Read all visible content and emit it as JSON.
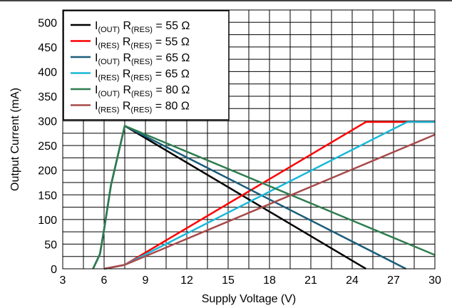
{
  "chart_data": {
    "type": "line",
    "title": "",
    "xlabel": "Supply Voltage (V)",
    "ylabel": "Output Current (mA)",
    "xlim": [
      3,
      30
    ],
    "ylim": [
      0,
      525
    ],
    "x_ticks": [
      3,
      6,
      9,
      12,
      15,
      18,
      21,
      24,
      27,
      30
    ],
    "x_tick_labels": [
      "3",
      "6",
      "9",
      "12",
      "15",
      "18",
      "21",
      "24",
      "27",
      "30"
    ],
    "y_ticks": [
      0,
      50,
      100,
      150,
      200,
      250,
      300,
      350,
      400,
      450,
      500
    ],
    "y_tick_labels": [
      "0",
      "50",
      "100",
      "150",
      "200",
      "250",
      "300",
      "350",
      "400",
      "450",
      "500"
    ],
    "grid": true,
    "legend_position": "top-left",
    "series": [
      {
        "name": "I(OUT) R(RES) = 55 Ω",
        "legend": {
          "main1": "I",
          "sub1": "(OUT)",
          "main2": " R",
          "sub2": "(RES)",
          "main3": " = 55 Ω"
        },
        "color": "#000000",
        "x": [
          5.2,
          5.7,
          6.0,
          6.5,
          7.5,
          25.0
        ],
        "y": [
          0,
          30,
          80,
          170,
          290,
          0
        ]
      },
      {
        "name": "I(RES) R(RES) = 55 Ω",
        "legend": {
          "main1": "I",
          "sub1": "(RES)",
          "main2": " R",
          "sub2": "(RES)",
          "main3": " = 55 Ω"
        },
        "color": "#ff0000",
        "x": [
          6.0,
          7.5,
          25.0,
          30.0
        ],
        "y": [
          0,
          8,
          298,
          298
        ]
      },
      {
        "name": "I(OUT) R(RES) = 65 Ω",
        "legend": {
          "main1": "I",
          "sub1": "(OUT)",
          "main2": " R",
          "sub2": "(RES)",
          "main3": " = 65 Ω"
        },
        "color": "#1b5e7a",
        "x": [
          5.2,
          5.7,
          6.0,
          6.5,
          7.5,
          27.9
        ],
        "y": [
          0,
          30,
          80,
          170,
          290,
          0
        ]
      },
      {
        "name": "I(RES) R(RES) = 65 Ω",
        "legend": {
          "main1": "I",
          "sub1": "(RES)",
          "main2": " R",
          "sub2": "(RES)",
          "main3": " = 65 Ω"
        },
        "color": "#1ab8d8",
        "x": [
          6.0,
          7.5,
          28.0,
          30.0
        ],
        "y": [
          0,
          8,
          298,
          298
        ]
      },
      {
        "name": "I(OUT) R(RES) = 80 Ω",
        "legend": {
          "main1": "I",
          "sub1": "(OUT)",
          "main2": " R",
          "sub2": "(RES)",
          "main3": " = 80 Ω"
        },
        "color": "#2e7d4f",
        "x": [
          5.2,
          5.7,
          6.0,
          6.5,
          7.5,
          30.0
        ],
        "y": [
          0,
          30,
          80,
          170,
          290,
          28
        ]
      },
      {
        "name": "I(RES) R(RES) = 80 Ω",
        "legend": {
          "main1": "I",
          "sub1": "(RES)",
          "main2": " R",
          "sub2": "(RES)",
          "main3": " = 80 Ω"
        },
        "color": "#a84a4a",
        "x": [
          6.0,
          7.5,
          30.0
        ],
        "y": [
          0,
          8,
          272
        ]
      }
    ]
  }
}
